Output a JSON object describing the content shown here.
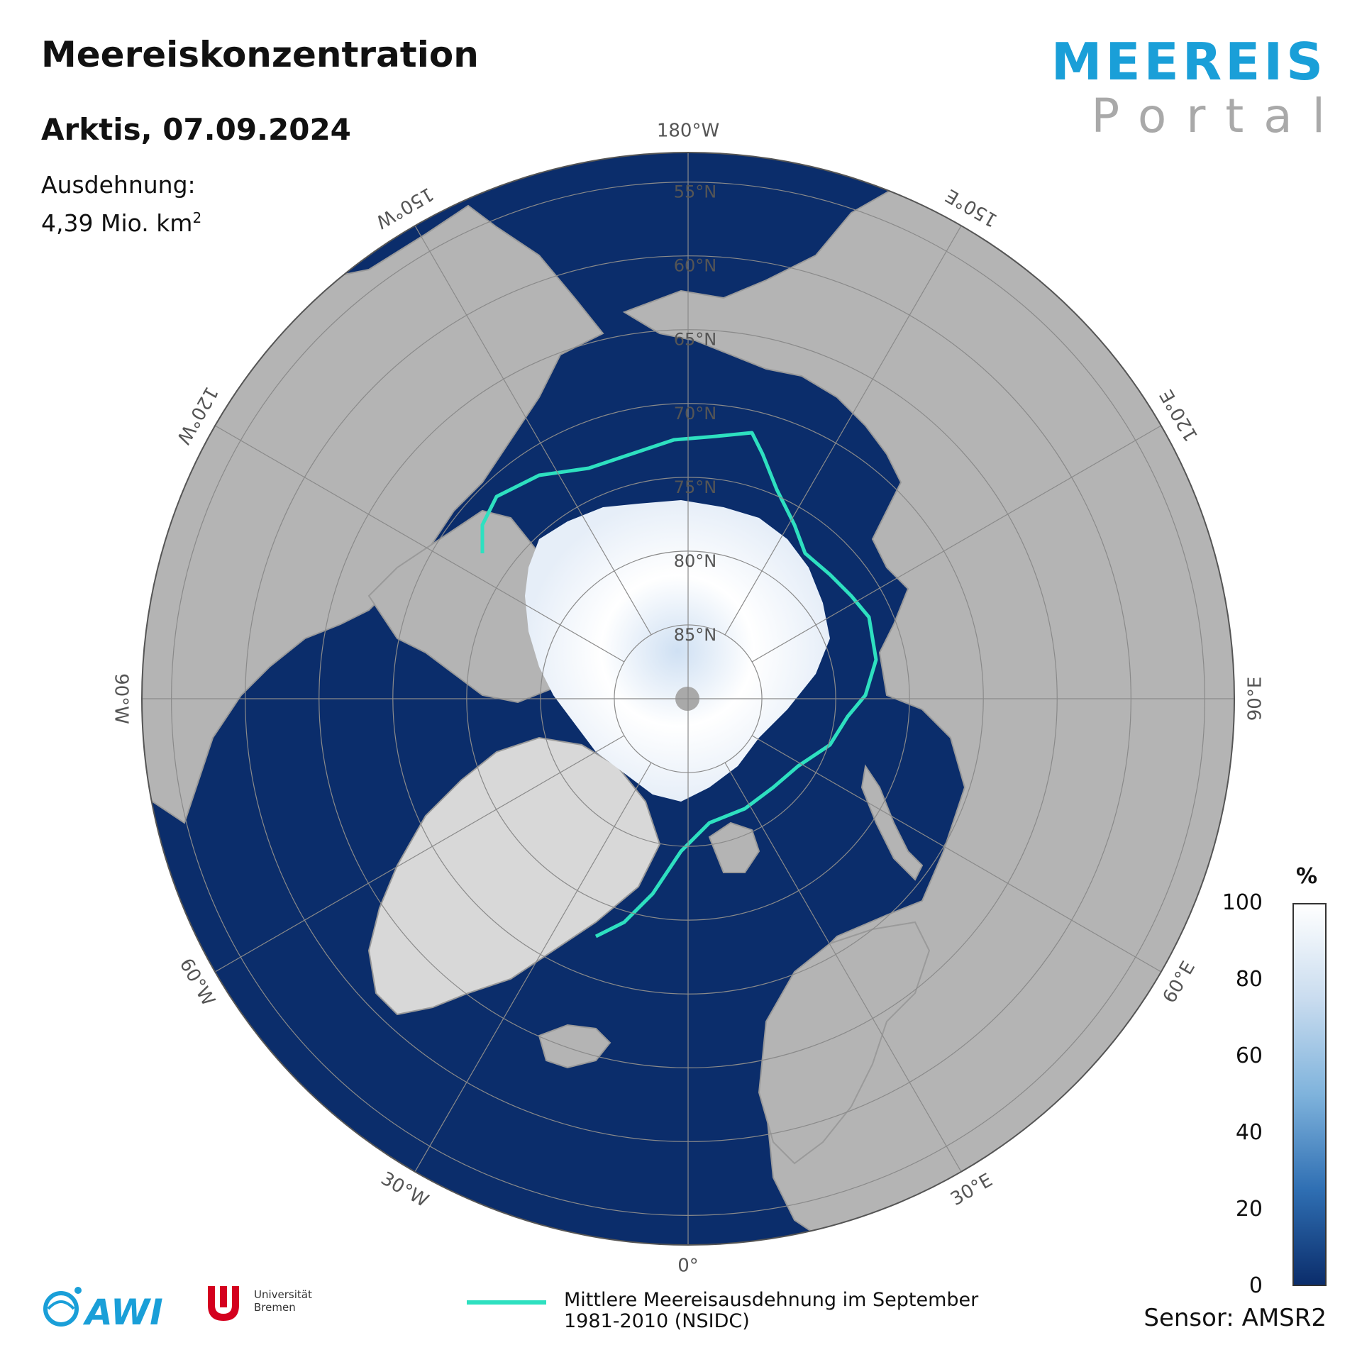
{
  "header": {
    "title": "Meereiskonzentration",
    "subtitle": "Arktis, 07.09.2024",
    "extent_label": "Ausdehnung:",
    "extent_value": "4,39 Mio. km",
    "extent_superscript": "2"
  },
  "portal_logo": {
    "line1": "MEEREIS",
    "line2": "Portal"
  },
  "map": {
    "projection": "polar-stereographic-north",
    "colors": {
      "ocean": "#0b2d6b",
      "land": "#b4b4b4",
      "ice": "#ffffff",
      "mean_extent_line": "#2ee0c0",
      "graticule": "#8a8a8a"
    },
    "longitude_labels": [
      {
        "text": "180°W",
        "lon": 180
      },
      {
        "text": "150°E",
        "lon": 150
      },
      {
        "text": "120°E",
        "lon": 120
      },
      {
        "text": "90°E",
        "lon": 90
      },
      {
        "text": "60°E",
        "lon": 60
      },
      {
        "text": "30°E",
        "lon": 30
      },
      {
        "text": "0°",
        "lon": 0
      },
      {
        "text": "30°W",
        "lon": -30
      },
      {
        "text": "60°W",
        "lon": -60
      },
      {
        "text": "90°W",
        "lon": -90
      },
      {
        "text": "120°W",
        "lon": -120
      },
      {
        "text": "150°W",
        "lon": -150
      }
    ],
    "latitude_labels": [
      {
        "text": "55°N",
        "lat": 55
      },
      {
        "text": "60°N",
        "lat": 60
      },
      {
        "text": "65°N",
        "lat": 65
      },
      {
        "text": "70°N",
        "lat": 70
      },
      {
        "text": "75°N",
        "lat": 75
      },
      {
        "text": "80°N",
        "lat": 80
      },
      {
        "text": "85°N",
        "lat": 85
      }
    ]
  },
  "colorbar": {
    "unit": "%",
    "min": 0,
    "max": 100,
    "ticks": [
      "0",
      "20",
      "40",
      "60",
      "80",
      "100"
    ],
    "color_low": "#0b2d6b",
    "color_high": "#ffffff"
  },
  "legend": {
    "line_label_1": "Mittlere Meereisausdehnung im September",
    "line_label_2": "1981-2010 (NSIDC)"
  },
  "sensor": "Sensor: AMSR2",
  "footer_logos": {
    "awi_text": "AWI",
    "uni_line1": "Universität",
    "uni_line2": "Bremen"
  }
}
